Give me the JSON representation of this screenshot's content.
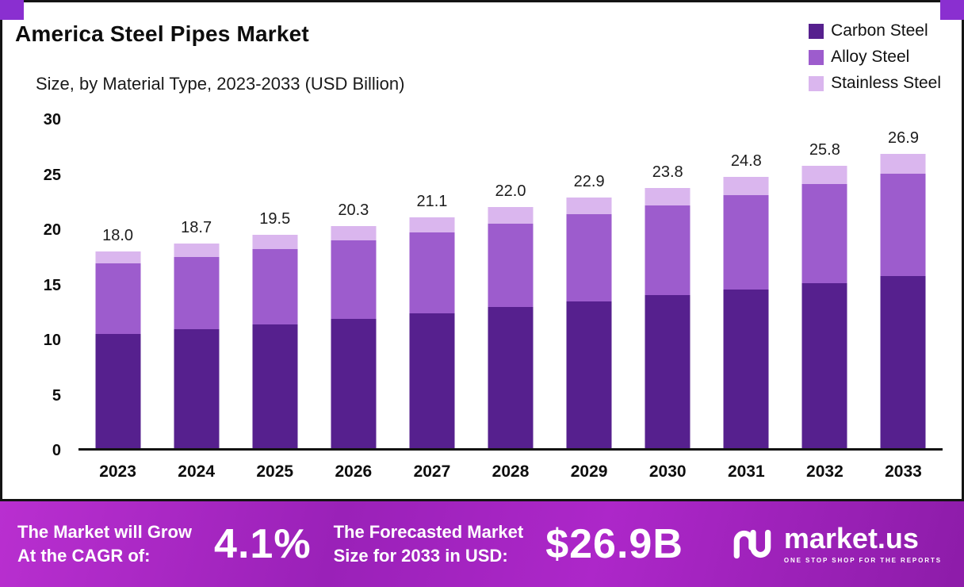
{
  "title": "America Steel Pipes Market",
  "subtitle": "Size, by Material Type, 2023-2033 (USD Billion)",
  "chart_data": {
    "type": "bar",
    "stacked": true,
    "title": "America Steel Pipes Market",
    "subtitle": "Size, by Material Type, 2023-2033 (USD Billion)",
    "categories": [
      "2023",
      "2024",
      "2025",
      "2026",
      "2027",
      "2028",
      "2029",
      "2030",
      "2031",
      "2032",
      "2033"
    ],
    "series": [
      {
        "name": "Carbon Steel",
        "color": "#56208e",
        "values": [
          10.4,
          10.9,
          11.3,
          11.8,
          12.3,
          12.9,
          13.4,
          14.0,
          14.5,
          15.1,
          15.7
        ]
      },
      {
        "name": "Alloy Steel",
        "color": "#9d5ccd",
        "values": [
          6.5,
          6.6,
          6.9,
          7.2,
          7.4,
          7.6,
          8.0,
          8.2,
          8.6,
          9.0,
          9.4
        ]
      },
      {
        "name": "Stainless Steel",
        "color": "#dab6ee",
        "values": [
          1.1,
          1.2,
          1.3,
          1.3,
          1.4,
          1.5,
          1.5,
          1.6,
          1.7,
          1.7,
          1.8
        ]
      }
    ],
    "totals": [
      18.0,
      18.7,
      19.5,
      20.3,
      21.1,
      22.0,
      22.9,
      23.8,
      24.8,
      25.8,
      26.9
    ],
    "ylim": [
      0,
      30
    ],
    "yticks": [
      0,
      5,
      10,
      15,
      20,
      25,
      30
    ],
    "grid": false,
    "legend_position": "top-right",
    "xlabel": "",
    "ylabel": ""
  },
  "banner": {
    "cagr_label": [
      "The Market will Grow",
      "At the CAGR of:"
    ],
    "cagr_value": "4.1%",
    "forecast_label": [
      "The Forecasted Market",
      "Size for 2033 in USD:"
    ],
    "forecast_value": "$26.9B",
    "brand": "market.us",
    "tagline": "ONE STOP SHOP FOR THE REPORTS"
  },
  "colors": {
    "accent": "#8a2fd0",
    "banner_gradient": [
      "#b92fd0",
      "#8d1ca9"
    ],
    "axis": "#141414"
  }
}
